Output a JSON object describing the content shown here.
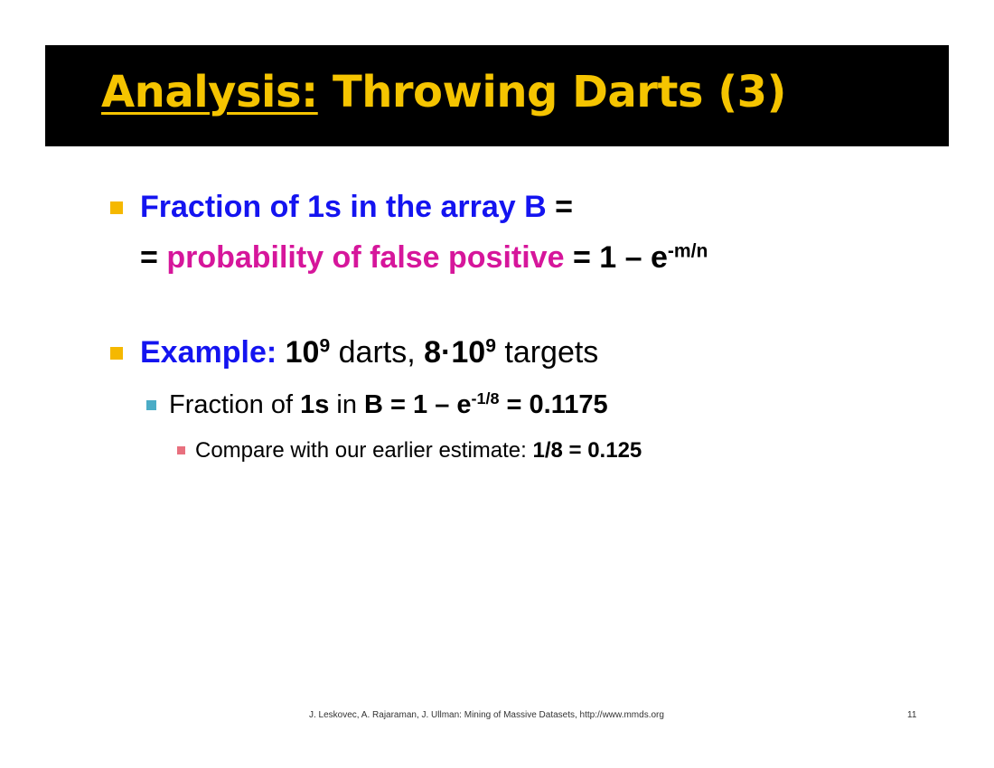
{
  "slide": {
    "title_prefix": "Analysis:",
    "title_rest": " Throwing Darts (3)",
    "bullet1": {
      "line1_blue": "Fraction of 1s in the array B",
      "line1_tail": " =",
      "line2_start": "= ",
      "line2_magenta": "probability of false positive",
      "line2_mid": " = 1 – e",
      "line2_exp": "-m/n"
    },
    "bullet2": {
      "label": "Example:",
      "n1": " 10",
      "n1_exp": "9",
      "darts": " darts, ",
      "n2": "8·10",
      "n2_exp": "9",
      "targets": " targets"
    },
    "sub1": {
      "t1": "Fraction of ",
      "b1": "1s",
      "t2": " in ",
      "b2": "B = 1 – e",
      "exp": "-1/8",
      "b3": " = 0.1175"
    },
    "sub2": {
      "t1": "Compare with our earlier estimate: ",
      "b1": "1/8 = 0.125"
    },
    "footer": {
      "citation": "J. Leskovec, A. Rajaraman, J. Ullman: Mining of Massive Datasets, http://www.mmds.org",
      "page": "11"
    }
  },
  "colors": {
    "title": "#f5c400",
    "title_bar": "#000000",
    "blue": "#1414f0",
    "magenta": "#d6169b",
    "bullet_l1": "#f5b800",
    "bullet_l2": "#4bacc6",
    "bullet_l3": "#e8707e"
  }
}
